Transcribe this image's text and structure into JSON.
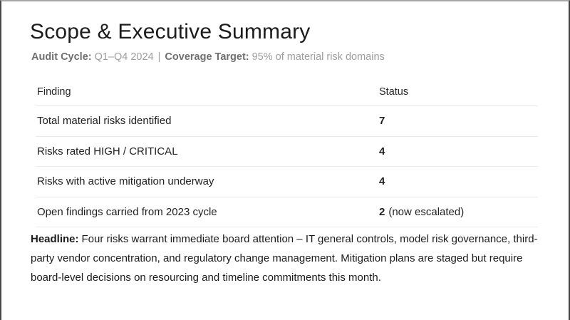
{
  "slide": {
    "title": "Scope & Executive Summary",
    "subtitle": {
      "audit_cycle_label": "Audit Cycle:",
      "audit_cycle_value": "Q1–Q4 2024",
      "separator": "|",
      "coverage_label": "Coverage Target:",
      "coverage_value": "95% of material risk domains"
    },
    "table": {
      "headers": [
        "Finding",
        "Status"
      ],
      "rows": [
        {
          "finding": "Total material risks identified",
          "status": "7",
          "note": ""
        },
        {
          "finding": "Risks rated HIGH / CRITICAL",
          "status": "4",
          "note": ""
        },
        {
          "finding": "Risks with active mitigation underway",
          "status": "4",
          "note": ""
        },
        {
          "finding": "Open findings carried from 2023 cycle",
          "status": "2",
          "note": "(now escalated)"
        }
      ]
    },
    "headline": {
      "label": "Headline:",
      "text": "Four risks warrant immediate board attention – IT general controls, model risk governance, third-party vendor concentration, and regulatory change management. Mitigation plans are staged but require board-level decisions on resourcing and timeline commitments this month."
    },
    "colors": {
      "title": "#1c1c1e",
      "subtitle_label": "#6f6f6f",
      "subtitle_value": "#9d9d9d",
      "body_text": "#1d1d1f",
      "divider": "#e9e9e9",
      "frame_dark": "#454545",
      "frame_light": "#a6a6a6"
    }
  }
}
